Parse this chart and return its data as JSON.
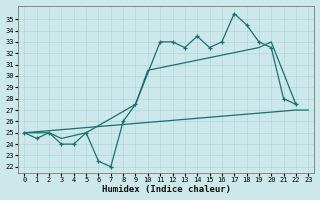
{
  "bg_color": "#cde8eb",
  "grid_color": "#b0d8dc",
  "line_color": "#1a7070",
  "xlabel": "Humidex (Indice chaleur)",
  "xlim": [
    -0.5,
    23.5
  ],
  "ylim": [
    21.5,
    36.2
  ],
  "xticks": [
    0,
    1,
    2,
    3,
    4,
    5,
    6,
    7,
    8,
    9,
    10,
    11,
    12,
    13,
    14,
    15,
    16,
    17,
    18,
    19,
    20,
    21,
    22,
    23
  ],
  "yticks": [
    22,
    23,
    24,
    25,
    26,
    27,
    28,
    29,
    30,
    31,
    32,
    33,
    34,
    35
  ],
  "line1_x": [
    0,
    1,
    2,
    3,
    4,
    5,
    6,
    7,
    8,
    9,
    11,
    12,
    13,
    14,
    15,
    16,
    17,
    18,
    19,
    20,
    21,
    22
  ],
  "line1_y": [
    25.0,
    24.5,
    25.0,
    24.0,
    24.0,
    25.0,
    22.5,
    22.0,
    26.0,
    27.5,
    33.0,
    33.0,
    32.5,
    33.5,
    32.5,
    33.0,
    35.5,
    34.5,
    33.0,
    32.5,
    28.0,
    27.5
  ],
  "line2_x": [
    0,
    2,
    3,
    5,
    9,
    10,
    19,
    20,
    22
  ],
  "line2_y": [
    25.0,
    25.0,
    24.5,
    25.0,
    27.5,
    30.5,
    32.5,
    33.0,
    27.5
  ],
  "line3_x": [
    0,
    22,
    23
  ],
  "line3_y": [
    25.0,
    27.0,
    27.0
  ]
}
